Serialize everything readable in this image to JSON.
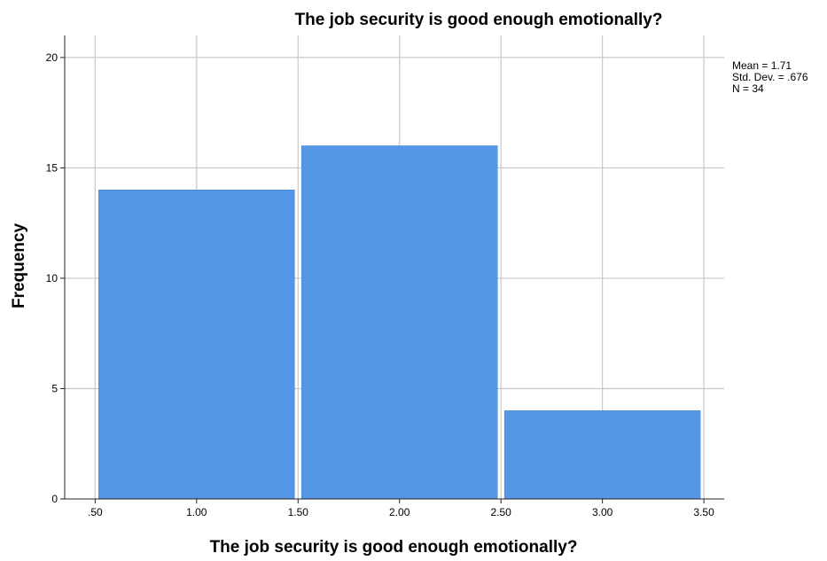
{
  "chart_data": {
    "type": "bar",
    "title": "The job security is good enough emotionally?",
    "xlabel": "The job security is good enough emotionally?",
    "ylabel": "Frequency",
    "x_ticks": [
      ".50",
      "1.00",
      "1.50",
      "2.00",
      "2.50",
      "3.00",
      "3.50"
    ],
    "x_tick_values": [
      0.5,
      1.0,
      1.5,
      2.0,
      2.5,
      3.0,
      3.5
    ],
    "y_ticks": [
      "0",
      "5",
      "10",
      "15",
      "20"
    ],
    "y_tick_values": [
      0,
      5,
      10,
      15,
      20
    ],
    "xlim": [
      0.35,
      3.6
    ],
    "ylim": [
      0,
      21
    ],
    "bins": [
      {
        "from": 0.5,
        "to": 1.5,
        "value": 14
      },
      {
        "from": 1.5,
        "to": 2.5,
        "value": 16
      },
      {
        "from": 2.5,
        "to": 3.5,
        "value": 4
      }
    ],
    "stats": [
      "Mean = 1.71",
      "Std. Dev. = .676",
      "N = 34"
    ],
    "grid": true,
    "bar_color": "#5597e6",
    "grid_color": "#c8c8c8"
  }
}
